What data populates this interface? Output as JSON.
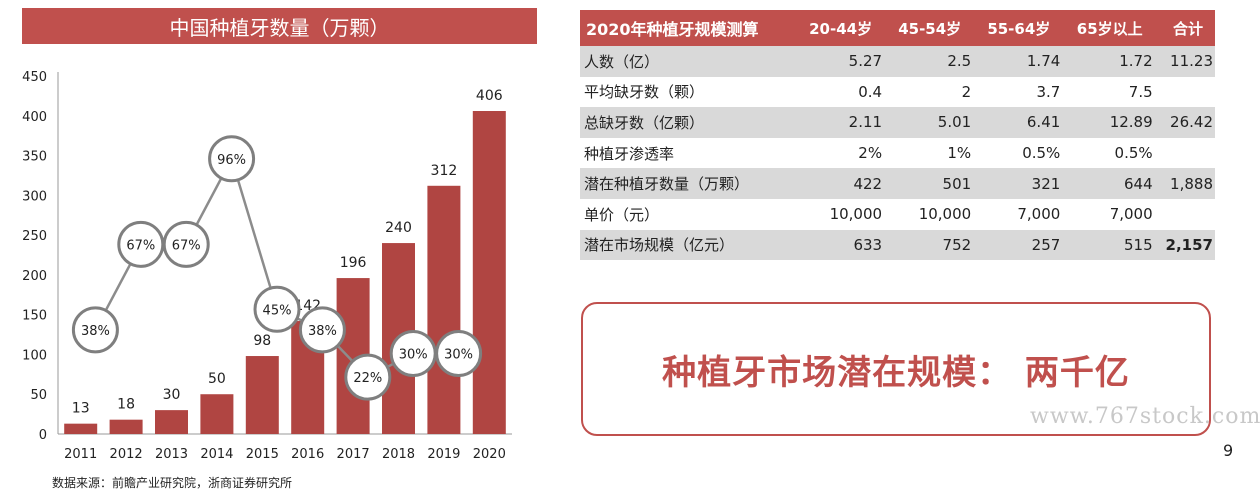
{
  "chart": {
    "title": "中国种植牙数量（万颗）",
    "source": "数据来源：前瞻产业研究院，浙商证券研究所"
  },
  "chart_data": {
    "type": "bar",
    "title": "中国种植牙数量（万颗）",
    "categories": [
      "2011",
      "2012",
      "2013",
      "2014",
      "2015",
      "2016",
      "2017",
      "2018",
      "2019",
      "2020"
    ],
    "values": [
      13,
      18,
      30,
      50,
      98,
      142,
      196,
      240,
      312,
      406
    ],
    "growth_labels": [
      "38%",
      "67%",
      "67%",
      "96%",
      "45%",
      "38%",
      "22%",
      "30%",
      "30%"
    ],
    "yticks": [
      0,
      50,
      100,
      150,
      200,
      250,
      300,
      350,
      400,
      450
    ],
    "ylim": [
      0,
      450
    ],
    "grid": false,
    "bar_color": "#b04542"
  },
  "table": {
    "headers": [
      "2020年种植牙规模测算",
      "20-44岁",
      "45-54岁",
      "55-64岁",
      "65岁以上",
      "合计"
    ],
    "rows": [
      {
        "label": "人数（亿）",
        "cells": [
          "5.27",
          "2.5",
          "1.74",
          "1.72",
          "11.23"
        ]
      },
      {
        "label": "平均缺牙数（颗）",
        "cells": [
          "0.4",
          "2",
          "3.7",
          "7.5",
          ""
        ]
      },
      {
        "label": "总缺牙数（亿颗）",
        "cells": [
          "2.11",
          "5.01",
          "6.41",
          "12.89",
          "26.42"
        ]
      },
      {
        "label": "种植牙渗透率",
        "cells": [
          "2%",
          "1%",
          "0.5%",
          "0.5%",
          ""
        ]
      },
      {
        "label": "潜在种植牙数量（万颗）",
        "cells": [
          "422",
          "501",
          "321",
          "644",
          "1,888"
        ]
      },
      {
        "label": "单价（元）",
        "cells": [
          "10,000",
          "10,000",
          "7,000",
          "7,000",
          ""
        ]
      },
      {
        "label": "潜在市场规模（亿元）",
        "cells": [
          "633",
          "752",
          "257",
          "515",
          "2,157"
        ]
      }
    ]
  },
  "conclusion": "种植牙市场潜在规模：  两千亿",
  "watermark": "www.767stock.com",
  "page_number": "9",
  "colors": {
    "accent": "#c0504d",
    "bar": "#b04542",
    "row_stripe": "#d9d9d9"
  }
}
